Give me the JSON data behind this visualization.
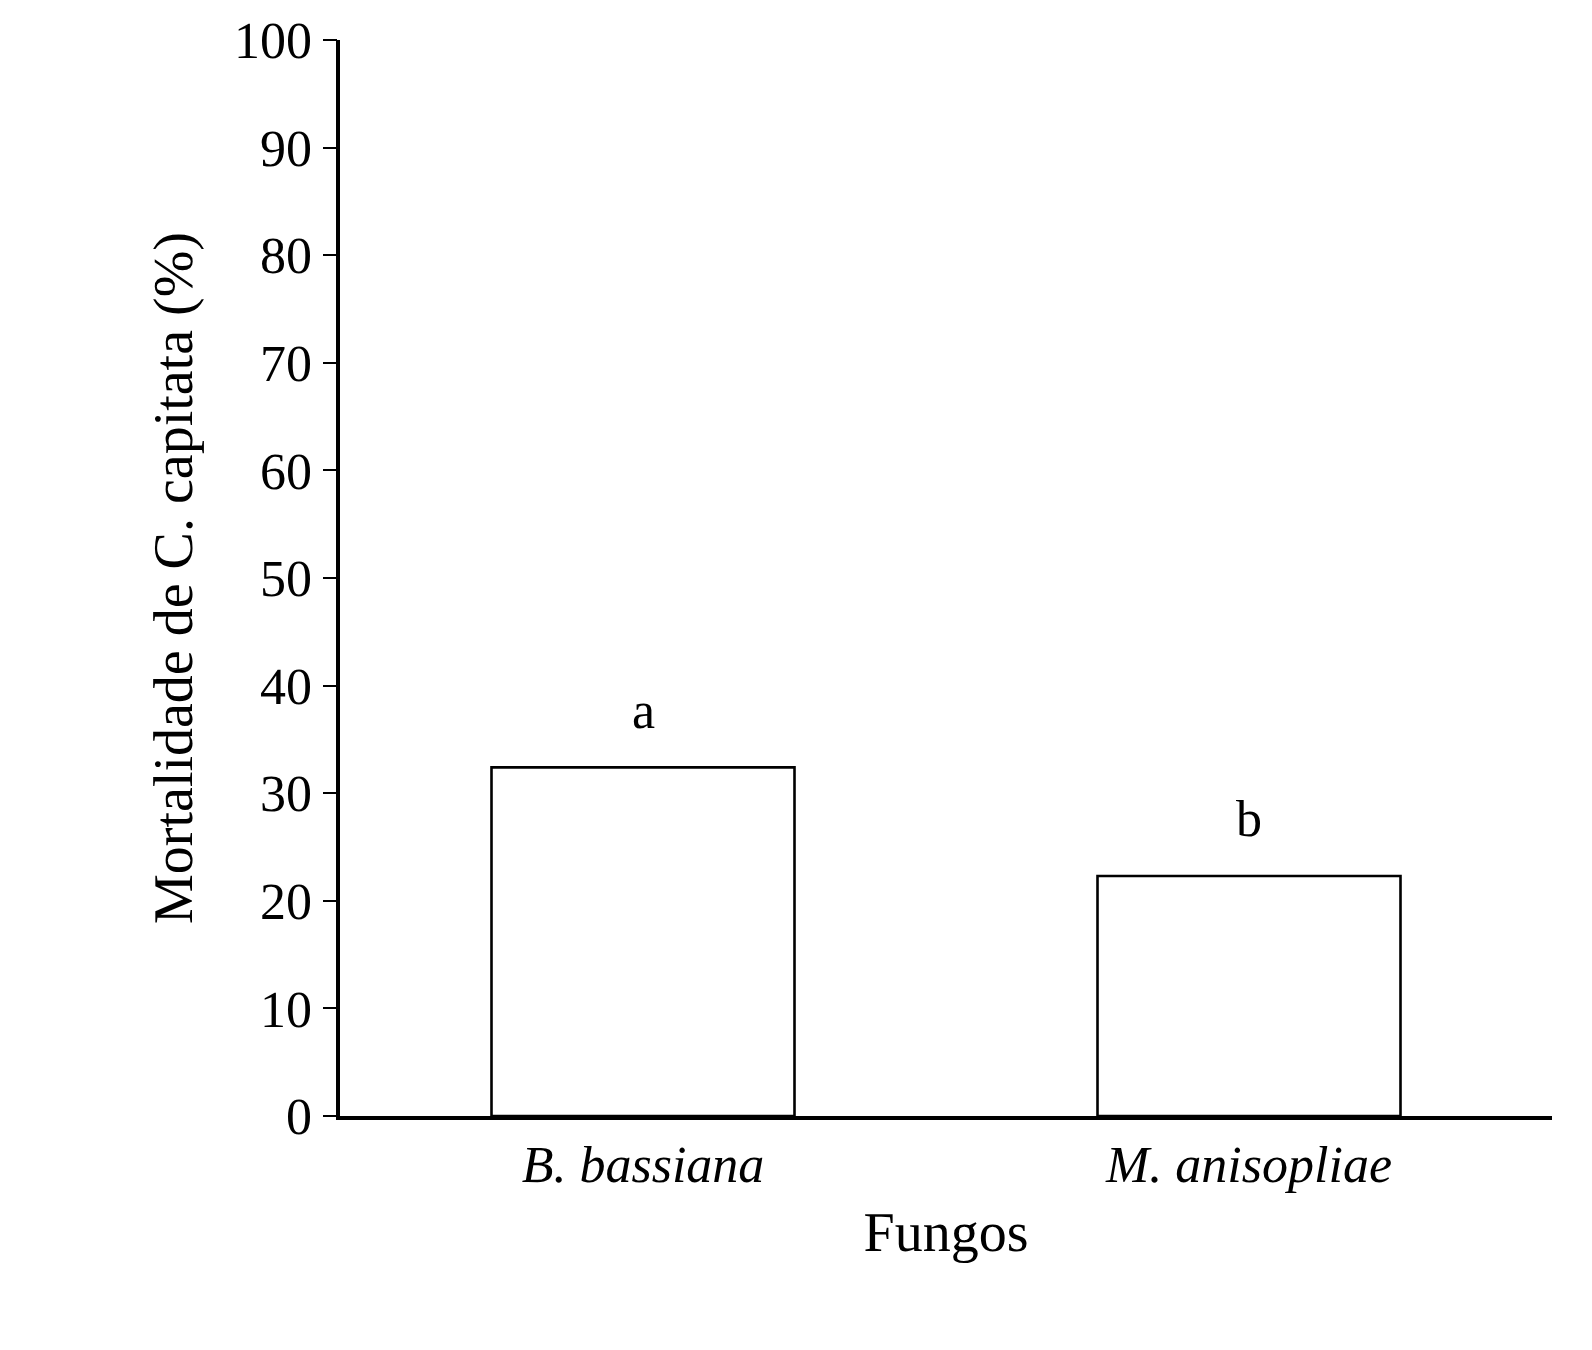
{
  "chart_data": {
    "type": "bar",
    "xlabel": "Fungos",
    "ylabel": "Mortalidade de C. capitata (%)",
    "categories": [
      "B. bassiana",
      "M. anisopliae"
    ],
    "values": [
      32.4,
      22.3
    ],
    "color": "#ffffff",
    "ylim": [
      0,
      100
    ],
    "yticks": [
      0,
      10,
      20,
      30,
      40,
      50,
      60,
      70,
      80,
      90,
      100
    ],
    "grid": false,
    "annotations": [
      {
        "text": "a",
        "x": "B. bassiana",
        "y": 32.4
      },
      {
        "text": "b",
        "x": "M. anisopliae",
        "y": 22.3
      }
    ]
  }
}
